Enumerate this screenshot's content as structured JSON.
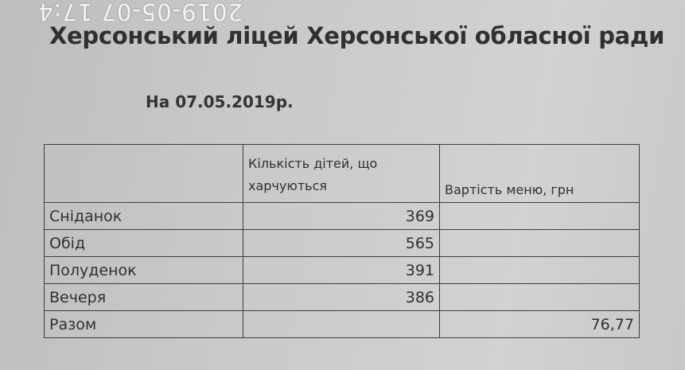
{
  "timestamp_overlay": "2019-05-07 17:4",
  "document": {
    "title": "Херсонський ліцей Херсонської обласної ради",
    "date_line": "На 07.05.2019р.",
    "table": {
      "headers": [
        "",
        "Кількість дітей, що харчуються",
        "Вартість меню, грн"
      ],
      "rows": [
        {
          "meal": "Сніданок",
          "children": "369",
          "cost": ""
        },
        {
          "meal": "Обід",
          "children": "565",
          "cost": ""
        },
        {
          "meal": "Полуденок",
          "children": "391",
          "cost": ""
        },
        {
          "meal": "Вечеря",
          "children": "386",
          "cost": ""
        },
        {
          "meal": "Разом",
          "children": "",
          "cost": "76,77"
        }
      ]
    }
  }
}
